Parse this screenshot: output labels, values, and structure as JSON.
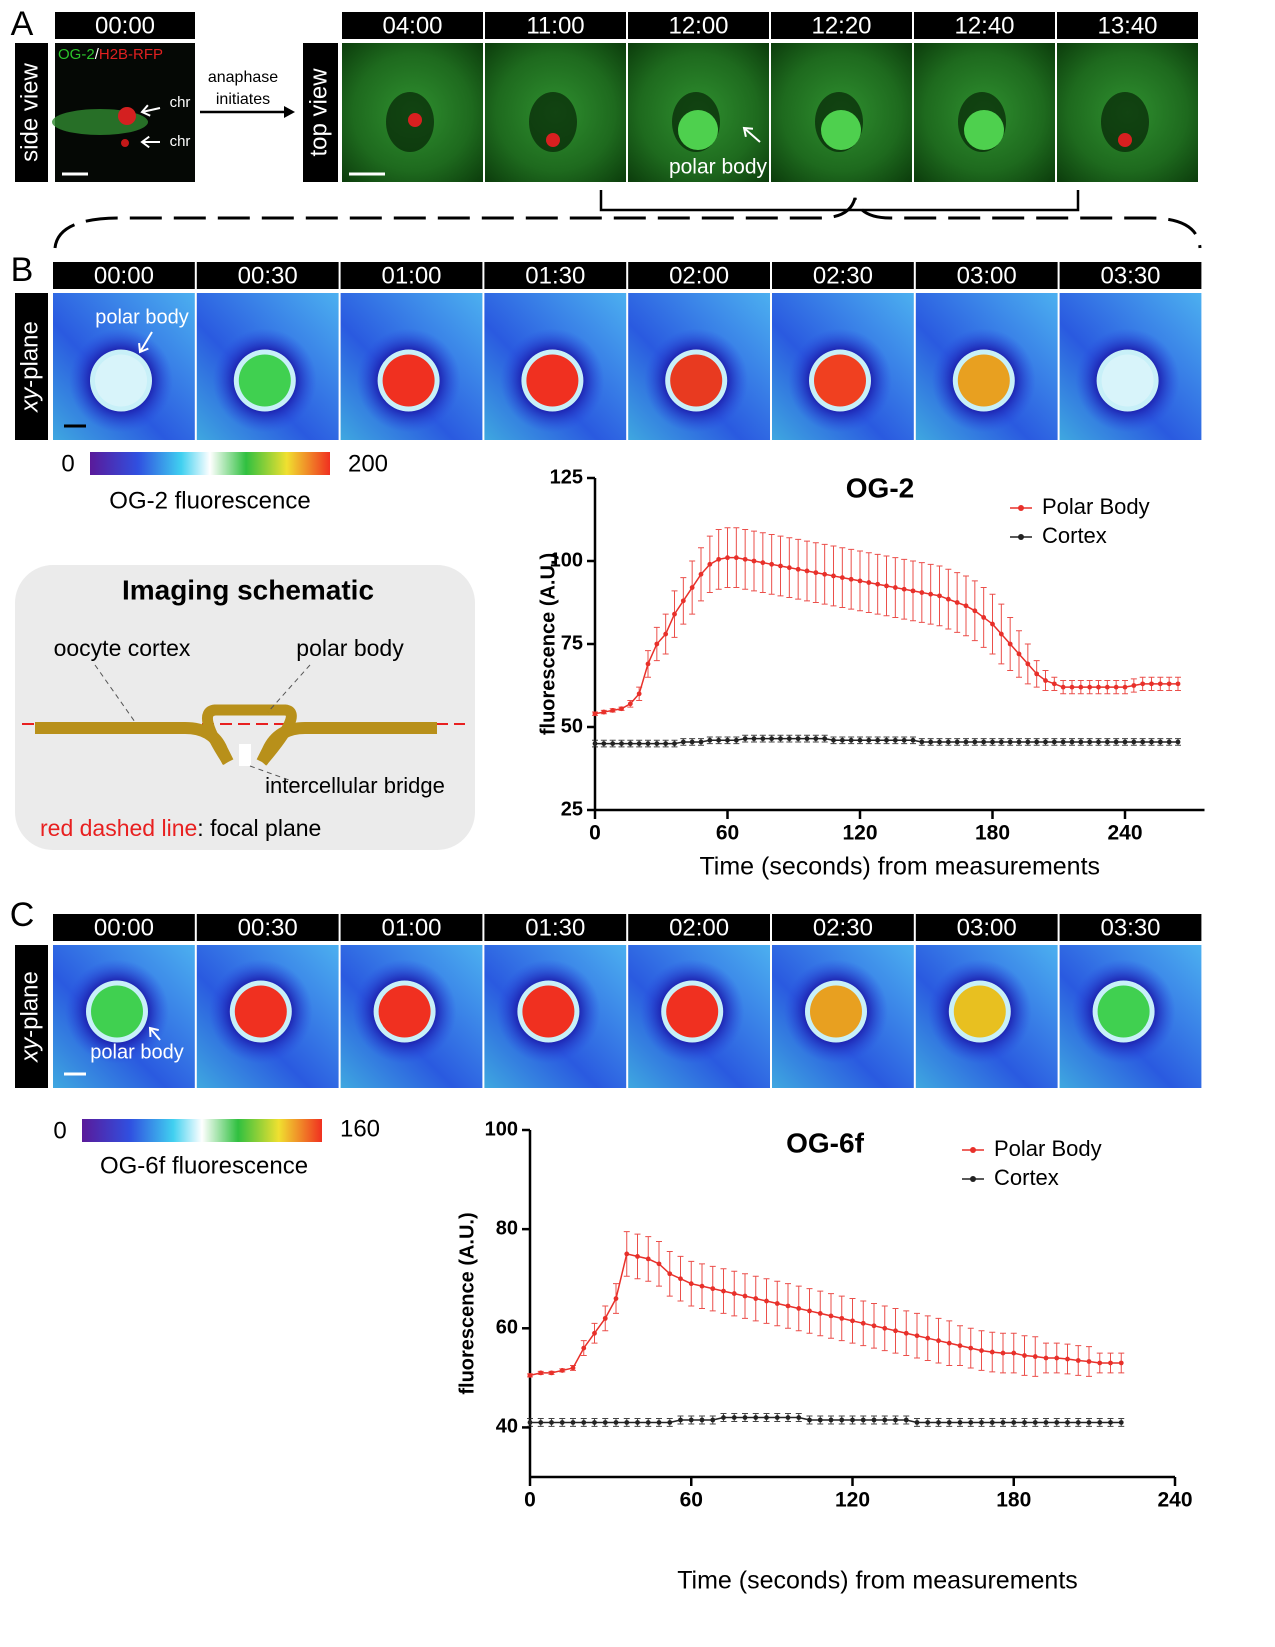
{
  "panel_a": {
    "label": "A",
    "side_label": "side view",
    "side_time": "00:00",
    "stain_green": "OG-2",
    "stain_sep": "/",
    "stain_red": "H2B-RFP",
    "chr_labels": [
      "chr",
      "chr"
    ],
    "arrow_text": [
      "anaphase",
      "initiates"
    ],
    "top_label": "top view",
    "times": [
      "04:00",
      "11:00",
      "12:00",
      "12:20",
      "12:40",
      "13:40"
    ],
    "polar_body": "polar body"
  },
  "panel_b": {
    "label": "B",
    "plane_italic": "xy",
    "plane_rest": "-plane",
    "times": [
      "00:00",
      "00:30",
      "01:00",
      "01:30",
      "02:00",
      "02:30",
      "03:00",
      "03:30"
    ],
    "polar_body": "polar body",
    "colorbar_min": "0",
    "colorbar_max": "200",
    "colorbar_label": "OG-2 fluorescence"
  },
  "schematic": {
    "title": "Imaging schematic",
    "cortex": "oocyte cortex",
    "polar_body": "polar body",
    "bridge": "intercellular bridge",
    "legend_red": "red dashed line",
    "legend_rest": ": focal plane"
  },
  "panel_c": {
    "label": "C",
    "plane_italic": "xy",
    "plane_rest": "-plane",
    "times": [
      "00:00",
      "00:30",
      "01:00",
      "01:30",
      "02:00",
      "02:30",
      "03:00",
      "03:30"
    ],
    "polar_body": "polar body",
    "colorbar_min": "0",
    "colorbar_max": "160",
    "colorbar_label": "OG-6f fluorescence"
  },
  "chart_data": [
    {
      "type": "line",
      "title": "OG-2",
      "x_label": "Time (seconds) from measurements",
      "y_label": "fluorescence (A.U.)",
      "xlim": [
        0,
        276
      ],
      "xticks": [
        0,
        60,
        120,
        180,
        240
      ],
      "ylim": [
        25,
        125
      ],
      "yticks": [
        25,
        50,
        75,
        100,
        125
      ],
      "x": [
        0,
        4,
        8,
        12,
        16,
        20,
        24,
        28,
        32,
        36,
        40,
        44,
        48,
        52,
        56,
        60,
        64,
        68,
        72,
        76,
        80,
        84,
        88,
        92,
        96,
        100,
        104,
        108,
        112,
        116,
        120,
        124,
        128,
        132,
        136,
        140,
        144,
        148,
        152,
        156,
        160,
        164,
        168,
        172,
        176,
        180,
        184,
        188,
        192,
        196,
        200,
        204,
        208,
        212,
        216,
        220,
        224,
        228,
        232,
        236,
        240,
        244,
        248,
        252,
        256,
        260,
        264
      ],
      "series": [
        {
          "name": "Polar  Body",
          "color": "#e8302a",
          "values": [
            54,
            54.5,
            55,
            55.5,
            57,
            60,
            69,
            75,
            78,
            84,
            88,
            92,
            96,
            99,
            100.5,
            101,
            101,
            100.5,
            100,
            99.5,
            99,
            98.5,
            98,
            97.5,
            97,
            96.5,
            96,
            95.5,
            95,
            94.5,
            94,
            93.5,
            93,
            92.5,
            92,
            91.5,
            91,
            90.5,
            90,
            89.5,
            88.5,
            87.5,
            86.5,
            85,
            83,
            81,
            78,
            75,
            72,
            69,
            66,
            64,
            63,
            62,
            62,
            62,
            62,
            62,
            62,
            62,
            62,
            62.5,
            63,
            63,
            63,
            63,
            63
          ],
          "errors": [
            0.5,
            0.5,
            0.5,
            0.5,
            1,
            2,
            4,
            5,
            6,
            7,
            7,
            8,
            8,
            8.5,
            9,
            9,
            9,
            9,
            9,
            9,
            9,
            9,
            9,
            9,
            9,
            9,
            9,
            9,
            9,
            9,
            9,
            9,
            9,
            9,
            9,
            9,
            9,
            9,
            9,
            9,
            9,
            9,
            9,
            9,
            9,
            9,
            9,
            8,
            7,
            6,
            4,
            3,
            2,
            2,
            2,
            2,
            2,
            2,
            2,
            2,
            2,
            2,
            2,
            2,
            2,
            2,
            2
          ]
        },
        {
          "name": "Cortex",
          "color": "#222222",
          "values": [
            45,
            45,
            45,
            45,
            45,
            45,
            45,
            45,
            45,
            45,
            45.5,
            45.5,
            45.5,
            46,
            46,
            46,
            46,
            46.5,
            46.5,
            46.5,
            46.5,
            46.5,
            46.5,
            46.5,
            46.5,
            46.5,
            46.5,
            46,
            46,
            46,
            46,
            46,
            46,
            46,
            46,
            46,
            46,
            45.5,
            45.5,
            45.5,
            45.5,
            45.5,
            45.5,
            45.5,
            45.5,
            45.5,
            45.5,
            45.5,
            45.5,
            45.5,
            45.5,
            45.5,
            45.5,
            45.5,
            45.5,
            45.5,
            45.5,
            45.5,
            45.5,
            45.5,
            45.5,
            45.5,
            45.5,
            45.5,
            45.5,
            45.5,
            45.5
          ],
          "errors": [
            1,
            1,
            1,
            1,
            1,
            1,
            1,
            1,
            1,
            1,
            1,
            1,
            1,
            1,
            1,
            1,
            1,
            1,
            1,
            1,
            1,
            1,
            1,
            1,
            1,
            1,
            1,
            1,
            1,
            1,
            1,
            1,
            1,
            1,
            1,
            1,
            1,
            1,
            1,
            1,
            1,
            1,
            1,
            1,
            1,
            1,
            1,
            1,
            1,
            1,
            1,
            1,
            1,
            1,
            1,
            1,
            1,
            1,
            1,
            1,
            1,
            1,
            1,
            1,
            1,
            1,
            1
          ]
        }
      ]
    },
    {
      "type": "line",
      "title": "OG-6f",
      "x_label": "Time (seconds) from measurements",
      "y_label": "fluorescence (A.U.)",
      "xlim": [
        0,
        240
      ],
      "xticks": [
        0,
        60,
        120,
        180,
        240
      ],
      "ylim": [
        30,
        100
      ],
      "yticks": [
        40,
        60,
        80,
        100
      ],
      "x": [
        0,
        4,
        8,
        12,
        16,
        20,
        24,
        28,
        32,
        36,
        40,
        44,
        48,
        52,
        56,
        60,
        64,
        68,
        72,
        76,
        80,
        84,
        88,
        92,
        96,
        100,
        104,
        108,
        112,
        116,
        120,
        124,
        128,
        132,
        136,
        140,
        144,
        148,
        152,
        156,
        160,
        164,
        168,
        172,
        176,
        180,
        184,
        188,
        192,
        196,
        200,
        204,
        208,
        212,
        216,
        220
      ],
      "series": [
        {
          "name": "Polar  Body",
          "color": "#e8302a",
          "values": [
            50.5,
            51,
            51,
            51.5,
            52,
            56,
            59,
            62,
            66,
            75,
            74.5,
            74,
            73,
            71,
            70,
            69,
            68.5,
            68,
            67.5,
            67,
            66.5,
            66,
            65.5,
            65,
            64.5,
            64,
            63.5,
            63,
            62.5,
            62,
            61.5,
            61,
            60.5,
            60,
            59.5,
            59,
            58.5,
            58,
            57.5,
            57,
            56.5,
            56,
            55.5,
            55.2,
            55,
            55,
            54.5,
            54.3,
            54,
            54,
            53.8,
            53.5,
            53.3,
            53,
            53,
            53
          ],
          "errors": [
            0.3,
            0.3,
            0.3,
            0.3,
            0.5,
            1.5,
            2,
            2.5,
            3,
            4.5,
            4.5,
            4.5,
            4.5,
            4.5,
            4.5,
            4.5,
            4.5,
            4.5,
            4.5,
            4.5,
            4.5,
            4.5,
            4.5,
            4.5,
            4.5,
            4.5,
            4.5,
            4.5,
            4.5,
            4.5,
            4.5,
            4.5,
            4.5,
            4.5,
            4.5,
            4.5,
            4.5,
            4.5,
            4.5,
            4.5,
            4,
            4,
            4,
            4,
            4,
            4,
            4,
            4,
            3,
            3,
            3,
            3,
            3,
            2,
            2,
            2
          ]
        },
        {
          "name": "Cortex",
          "color": "#222222",
          "values": [
            41,
            41,
            41,
            41,
            41,
            41,
            41,
            41,
            41,
            41,
            41,
            41,
            41,
            41,
            41.5,
            41.5,
            41.5,
            41.5,
            42,
            42,
            42,
            42,
            42,
            42,
            42,
            42,
            41.5,
            41.5,
            41.5,
            41.5,
            41.5,
            41.5,
            41.5,
            41.5,
            41.5,
            41.5,
            41,
            41,
            41,
            41,
            41,
            41,
            41,
            41,
            41,
            41,
            41,
            41,
            41,
            41,
            41,
            41,
            41,
            41,
            41,
            41
          ],
          "errors": [
            0.8,
            0.8,
            0.8,
            0.8,
            0.8,
            0.8,
            0.8,
            0.8,
            0.8,
            0.8,
            0.8,
            0.8,
            0.8,
            0.8,
            0.8,
            0.8,
            0.8,
            0.8,
            0.8,
            0.8,
            0.8,
            0.8,
            0.8,
            0.8,
            0.8,
            0.8,
            0.8,
            0.8,
            0.8,
            0.8,
            0.8,
            0.8,
            0.8,
            0.8,
            0.8,
            0.8,
            0.8,
            0.8,
            0.8,
            0.8,
            0.8,
            0.8,
            0.8,
            0.8,
            0.8,
            0.8,
            0.8,
            0.8,
            0.8,
            0.8,
            0.8,
            0.8,
            0.8,
            0.8,
            0.8,
            0.8
          ]
        }
      ]
    }
  ]
}
